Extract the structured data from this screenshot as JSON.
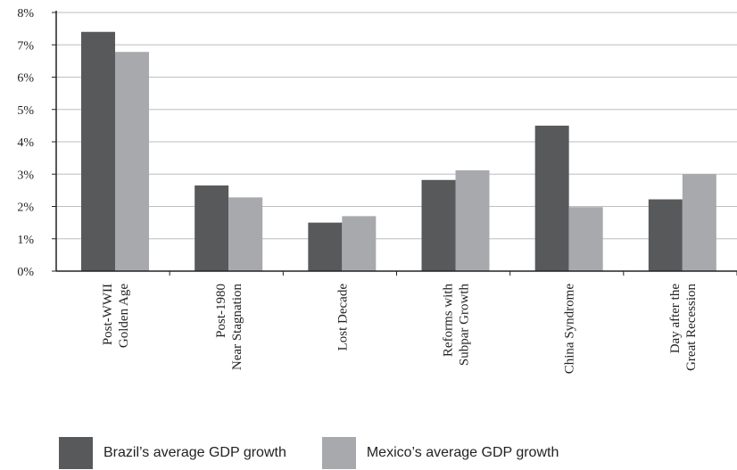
{
  "chart_data": {
    "type": "bar",
    "categories": [
      [
        "Post-WWII",
        "Golden Age"
      ],
      [
        "Post-1980",
        "Near Stagnation"
      ],
      [
        "Lost Decade"
      ],
      [
        "Reforms with",
        "Subpar Growth"
      ],
      [
        "China Syndrome"
      ],
      [
        "Day after the",
        "Great Recession"
      ]
    ],
    "series": [
      {
        "name": "Brazil’s average GDP growth",
        "color": "#58595b",
        "values": [
          7.4,
          2.65,
          1.5,
          2.82,
          4.5,
          2.22
        ]
      },
      {
        "name": "Mexico’s average GDP growth",
        "color": "#a7a9ac",
        "values": [
          6.78,
          2.28,
          1.7,
          3.12,
          1.98,
          3.0
        ]
      }
    ],
    "yticks": [
      "0%",
      "1%",
      "2%",
      "3%",
      "4%",
      "5%",
      "6%",
      "7%",
      "8%"
    ],
    "ylim": [
      0,
      8
    ],
    "grid": true,
    "legend_position": "bottom"
  }
}
